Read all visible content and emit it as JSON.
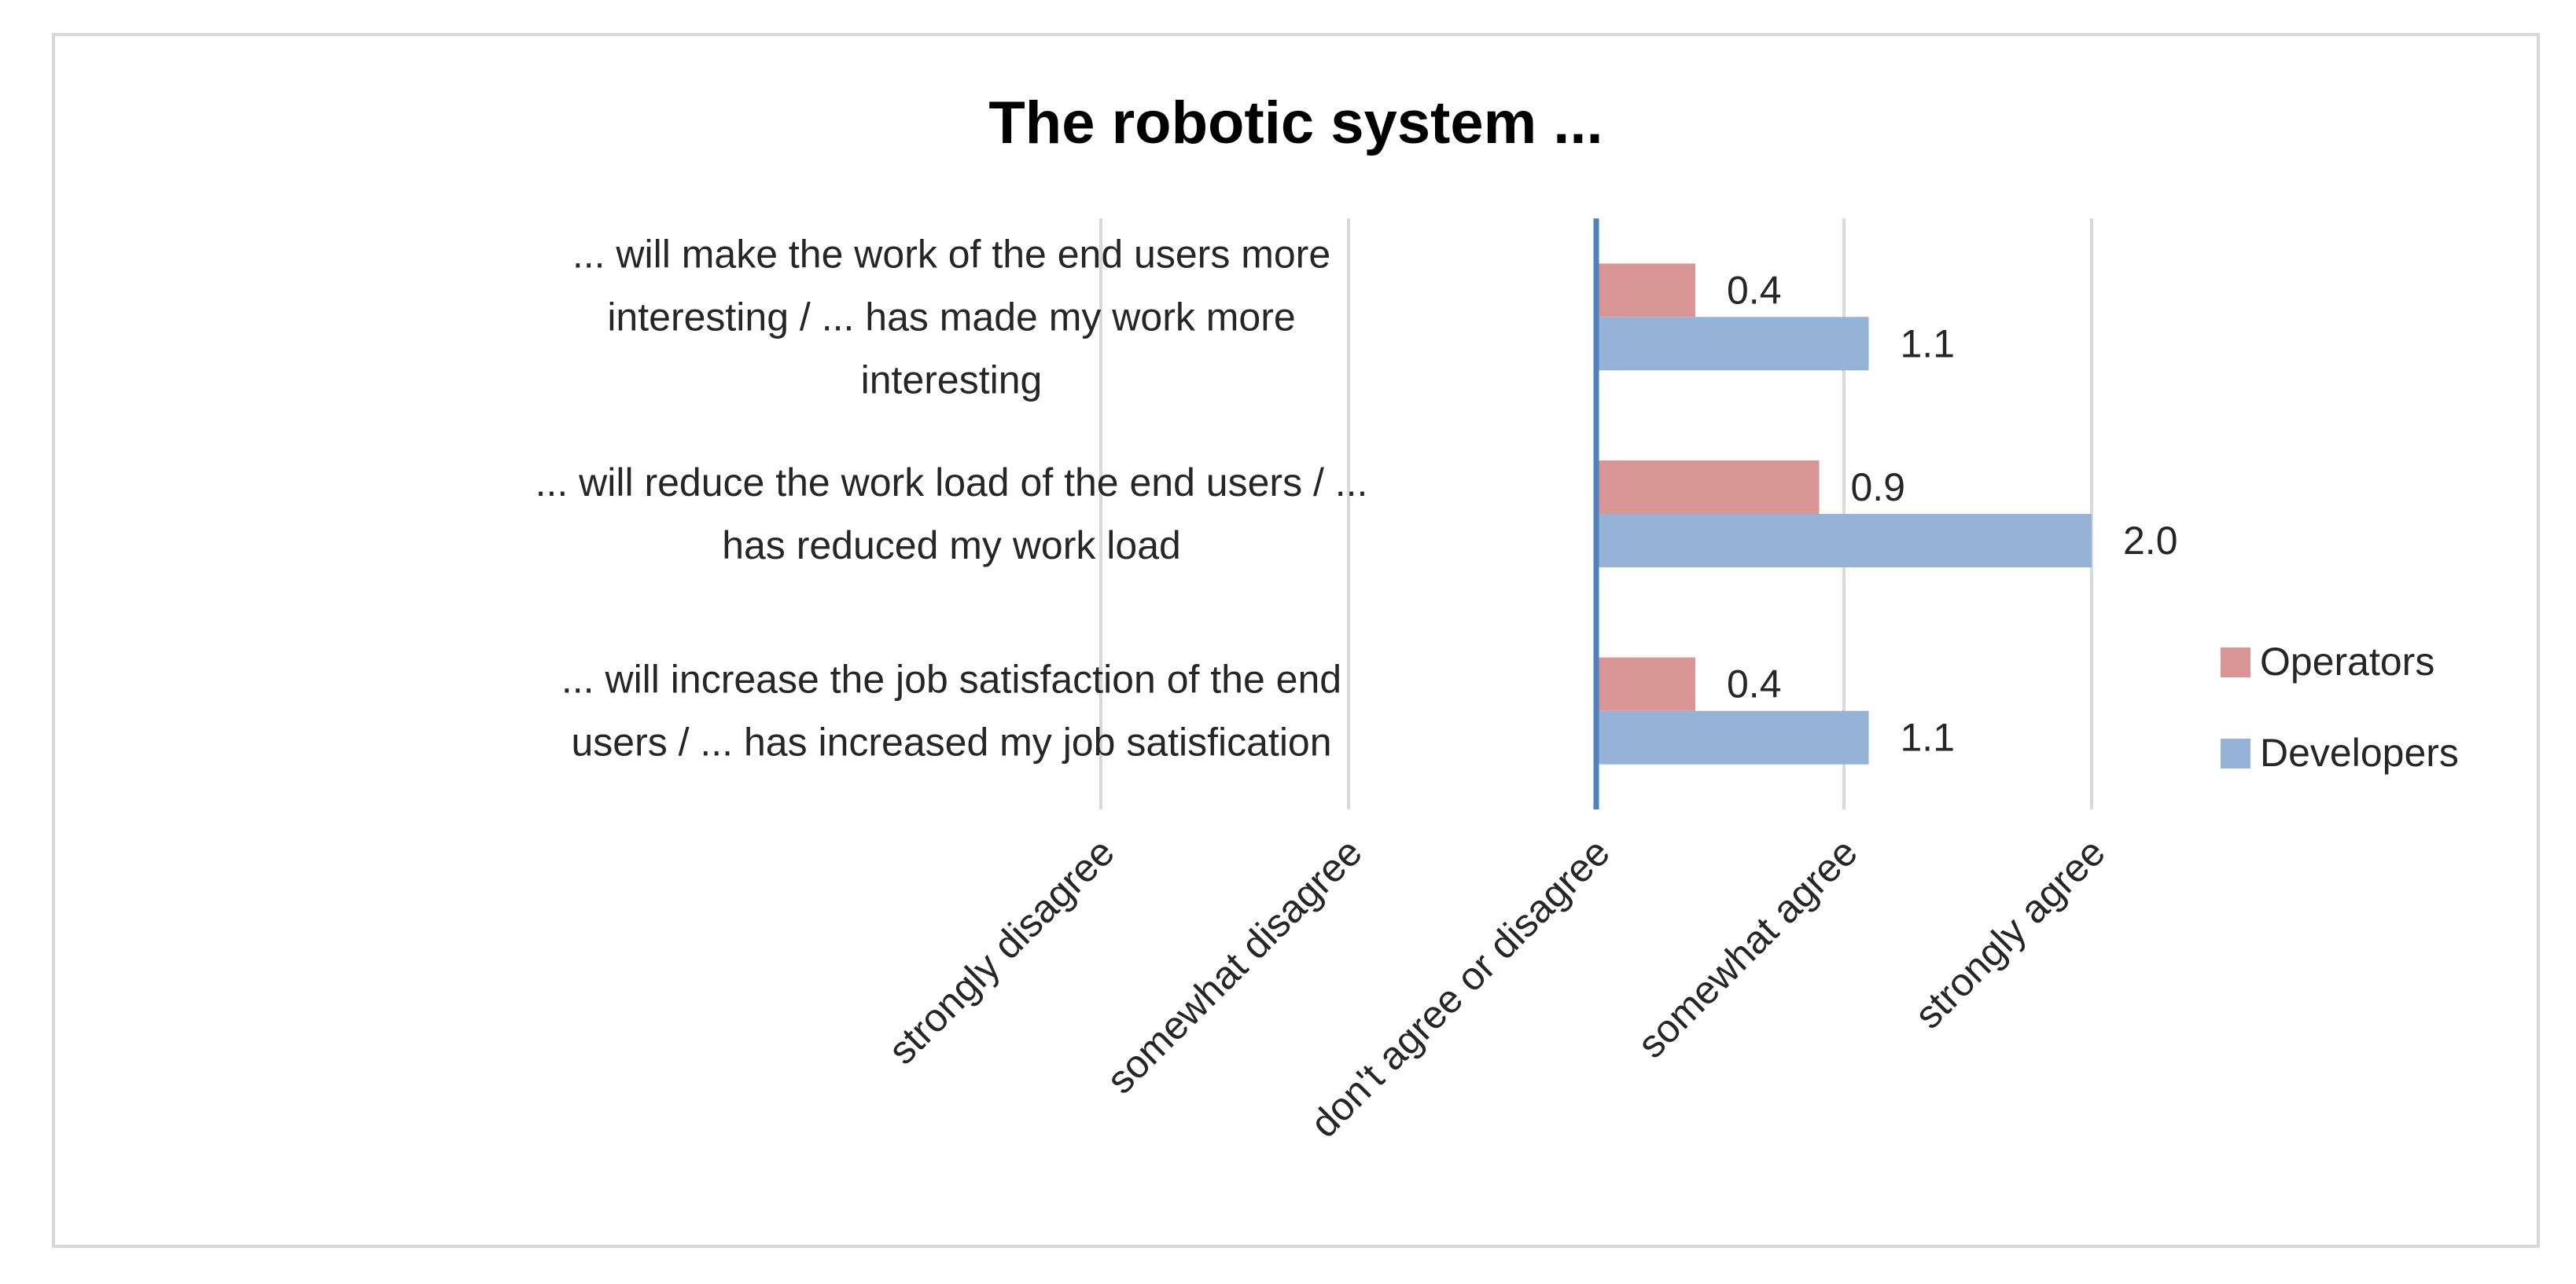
{
  "chart_data": {
    "type": "bar",
    "orientation": "horizontal",
    "title": "The robotic system ...",
    "xlabel": "",
    "ylabel": "",
    "categories": [
      [
        "... will make the work of the end users more",
        "interesting / ... has made my work more",
        "interesting"
      ],
      [
        "... will reduce the work load of the end users / ...",
        "has reduced my work load"
      ],
      [
        "... will increase the job satisfaction of the end",
        "users / ... has increased my job satisfication"
      ]
    ],
    "series": [
      {
        "name": "Operators",
        "values": [
          0.4,
          0.9,
          0.4
        ],
        "labels": [
          "0.4",
          "0.9",
          "0.4"
        ],
        "color": "#d99694"
      },
      {
        "name": "Developers",
        "values": [
          1.1,
          2.0,
          1.1
        ],
        "labels": [
          "1.1",
          "2.0",
          "1.1"
        ],
        "color": "#95b3d7"
      }
    ],
    "xlim": [
      -2,
      2
    ],
    "xticks": [
      -2,
      -1,
      0,
      1,
      2
    ],
    "xtick_labels": [
      "strongly disagree",
      "somewhat disagree",
      "don't agree or disagree",
      "somewhat agree",
      "strongly agree"
    ],
    "grid": true,
    "legend": "right",
    "zero_line_color": "#4f81bd",
    "grid_color": "#d9d9d9"
  }
}
